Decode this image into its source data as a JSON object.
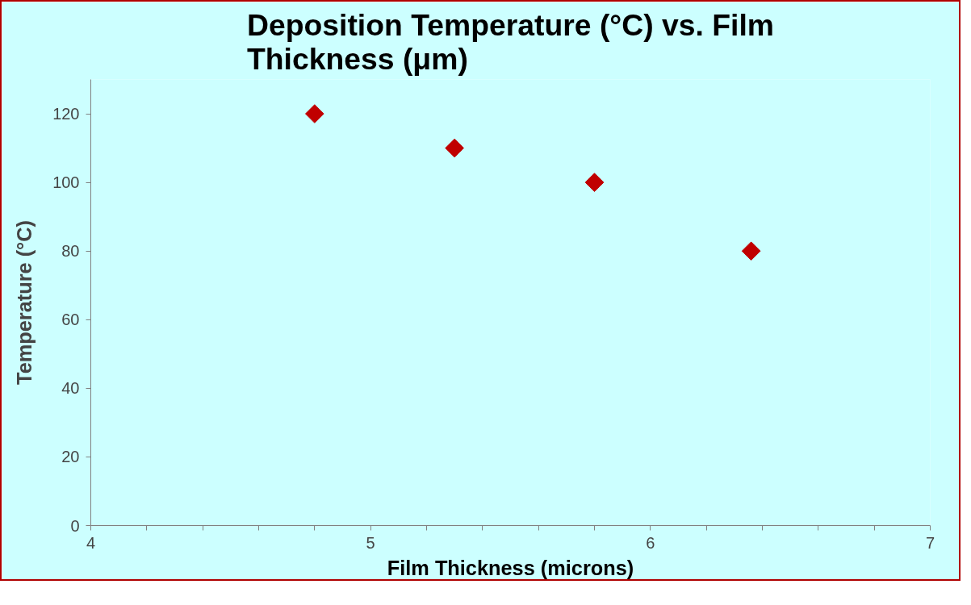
{
  "chart_data": {
    "type": "scatter",
    "title": "Deposition Temperature (°C) vs. Film Thickness (μm)",
    "xlabel": "Film Thickness (microns)",
    "ylabel": "Temperature (°C)",
    "x": [
      4.8,
      5.3,
      5.8,
      6.36
    ],
    "series": [
      {
        "color": "#c00000",
        "values": [
          120,
          110,
          100,
          80
        ]
      }
    ],
    "xlim": [
      4,
      7
    ],
    "ylim": [
      0,
      130
    ],
    "xticks": [
      4,
      {
        "value": 4.2,
        "label": null
      },
      {
        "value": 4.4,
        "label": null
      },
      {
        "value": 4.6,
        "label": null
      },
      {
        "value": 4.8,
        "label": null
      },
      5,
      {
        "value": 5.2,
        "label": null
      },
      {
        "value": 5.4,
        "label": null
      },
      {
        "value": 5.6,
        "label": null
      },
      {
        "value": 5.8,
        "label": null
      },
      6,
      {
        "value": 6.2,
        "label": null
      },
      {
        "value": 6.4,
        "label": null
      },
      {
        "value": 6.6,
        "label": null
      },
      {
        "value": 6.8,
        "label": null
      },
      7
    ],
    "yticks": [
      0,
      20,
      40,
      60,
      80,
      100,
      120
    ],
    "marker": "diamond",
    "grid": false
  }
}
